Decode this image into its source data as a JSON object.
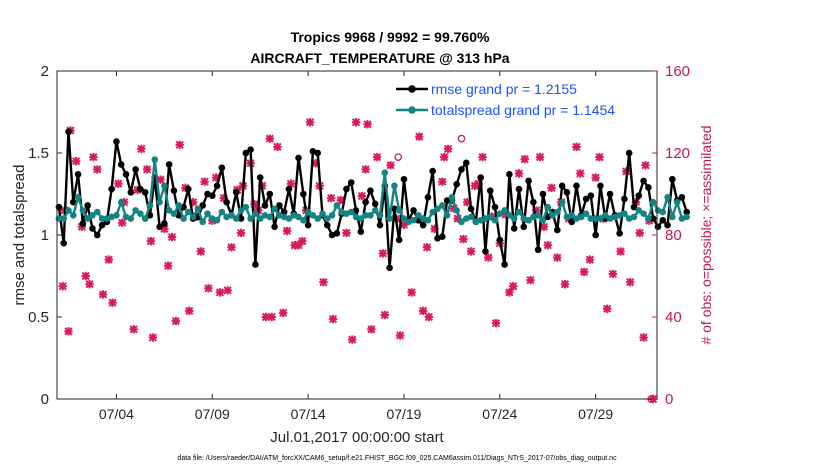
{
  "chart_data": {
    "type": "line",
    "title": "Tropics 9968 / 9992 = 99.760%",
    "subtitle": "AIRCRAFT_TEMPERATURE @ 313 hPa",
    "xlabel": "Jul.01,2017 00:00:00 start",
    "ylabel": "rmse and totalspread",
    "y2label": "# of obs: o=possible; ×=assimilated",
    "footnote": "data file: /Users/raeder/DAI/ATM_forcXX/CAM6_setup/f.e21.FHIST_BGC.f09_025.CAM6assim.011/Diags_NTrS_2017-07/obs_diag_output.nc",
    "xlim": [
      0.9,
      32.2
    ],
    "ylim": [
      0,
      2
    ],
    "y2lim": [
      0,
      160
    ],
    "x_ticks": [
      4,
      9,
      14,
      19,
      24,
      29
    ],
    "x_tick_labels": [
      "07/04",
      "07/09",
      "07/14",
      "07/19",
      "07/24",
      "07/29"
    ],
    "y_ticks": [
      0,
      0.5,
      1,
      1.5,
      2
    ],
    "y_tick_labels": [
      "0",
      "0.5",
      "1",
      "1.5",
      "2"
    ],
    "y2_ticks": [
      0,
      40,
      80,
      120,
      160
    ],
    "y2_tick_labels": [
      "0",
      "40",
      "80",
      "120",
      "160"
    ],
    "x_start": 1.0,
    "x_step": 0.25,
    "series": [
      {
        "name": "rmse grand pr = 1.2155",
        "color": "#000000",
        "marker": "circle",
        "values": [
          1.17,
          0.95,
          1.63,
          1.2,
          1.37,
          1.07,
          1.18,
          1.04,
          1.0,
          1.06,
          1.08,
          1.28,
          1.57,
          1.43,
          1.37,
          1.26,
          1.4,
          1.28,
          1.26,
          1.12,
          1.35,
          1.05,
          1.07,
          1.43,
          1.27,
          1.12,
          1.17,
          1.28,
          1.1,
          1.11,
          1.18,
          1.25,
          1.24,
          1.3,
          1.41,
          1.2,
          1.12,
          1.26,
          1.1,
          1.5,
          1.52,
          0.82,
          1.35,
          1.18,
          1.25,
          1.05,
          1.18,
          1.14,
          1.28,
          1.13,
          1.47,
          1.25,
          1.06,
          1.51,
          1.5,
          1.12,
          1.06,
          1.0,
          1.01,
          1.13,
          1.28,
          1.32,
          1.15,
          1.02,
          1.2,
          1.27,
          1.19,
          1.06,
          1.3,
          0.8,
          1.16,
          0.97,
          1.34,
          1.09,
          1.15,
          1.09,
          1.06,
          1.23,
          1.39,
          0.98,
          0.99,
          1.21,
          1.21,
          1.31,
          1.4,
          1.44,
          1.16,
          1.08,
          1.35,
          0.9,
          1.27,
          1.17,
          0.97,
          0.82,
          1.37,
          1.04,
          1.28,
          1.05,
          1.33,
          1.2,
          0.91,
          1.25,
          1.11,
          1.14,
          1.03,
          1.3,
          1.26,
          1.08,
          1.3,
          1.12,
          1.22,
          1.24,
          1.0,
          1.3,
          1.1,
          1.25,
          1.12,
          1.01,
          1.22,
          1.5,
          1.17,
          1.24,
          1.33,
          1.29,
          1.1,
          1.05,
          1.09,
          1.06,
          1.34,
          1.21,
          1.23,
          1.14
        ]
      },
      {
        "name": "totalspread grand pr = 1.1454",
        "color": "#138484",
        "marker": "circle",
        "values": [
          1.1,
          1.1,
          1.15,
          1.12,
          1.23,
          1.15,
          1.1,
          1.12,
          1.14,
          1.1,
          1.1,
          1.11,
          1.12,
          1.2,
          1.11,
          1.1,
          1.15,
          1.13,
          1.1,
          1.18,
          1.46,
          1.2,
          1.3,
          1.15,
          1.13,
          1.18,
          1.1,
          1.14,
          1.11,
          1.16,
          1.08,
          1.13,
          1.1,
          1.09,
          1.14,
          1.11,
          1.12,
          1.1,
          1.15,
          1.17,
          1.1,
          1.13,
          1.1,
          1.12,
          1.11,
          1.16,
          1.12,
          1.11,
          1.1,
          1.12,
          1.11,
          1.09,
          1.14,
          1.12,
          1.1,
          1.13,
          1.1,
          1.12,
          1.18,
          1.14,
          1.13,
          1.14,
          1.11,
          1.1,
          1.12,
          1.12,
          1.15,
          1.12,
          1.38,
          1.1,
          1.3,
          1.15,
          1.1,
          1.08,
          1.09,
          1.12,
          1.1,
          1.09,
          1.14,
          1.16,
          1.18,
          1.12,
          1.23,
          1.15,
          1.08,
          1.1,
          1.11,
          1.08,
          1.09,
          1.1,
          1.11,
          1.09,
          1.13,
          1.15,
          1.12,
          1.1,
          1.14,
          1.1,
          1.09,
          1.11,
          1.12,
          1.09,
          1.17,
          1.12,
          1.14,
          1.2,
          1.11,
          1.12,
          1.1,
          1.11,
          1.13,
          1.1,
          1.1,
          1.1,
          1.12,
          1.1,
          1.11,
          1.12,
          1.13,
          1.1,
          1.11,
          1.15,
          1.13,
          1.1,
          1.2,
          1.15,
          1.14,
          1.23,
          1.11,
          1.2,
          1.1,
          1.11
        ]
      }
    ],
    "obs_assimilated": [
      {
        "x": 1.2,
        "y": 55
      },
      {
        "x": 1.3,
        "y": 92
      },
      {
        "x": 1.5,
        "y": 33
      },
      {
        "x": 1.6,
        "y": 131
      },
      {
        "x": 1.9,
        "y": 116
      },
      {
        "x": 2.2,
        "y": 84
      },
      {
        "x": 2.4,
        "y": 60
      },
      {
        "x": 2.6,
        "y": 56
      },
      {
        "x": 2.8,
        "y": 118
      },
      {
        "x": 3.0,
        "y": 112
      },
      {
        "x": 3.3,
        "y": 51
      },
      {
        "x": 3.6,
        "y": 68
      },
      {
        "x": 3.8,
        "y": 47
      },
      {
        "x": 4.1,
        "y": 105
      },
      {
        "x": 4.3,
        "y": 86
      },
      {
        "x": 4.4,
        "y": 96
      },
      {
        "x": 4.9,
        "y": 34
      },
      {
        "x": 5.1,
        "y": 102
      },
      {
        "x": 5.3,
        "y": 122
      },
      {
        "x": 5.6,
        "y": 112
      },
      {
        "x": 5.8,
        "y": 77
      },
      {
        "x": 5.9,
        "y": 30
      },
      {
        "x": 6.3,
        "y": 107
      },
      {
        "x": 6.5,
        "y": 83
      },
      {
        "x": 6.7,
        "y": 65
      },
      {
        "x": 6.9,
        "y": 79
      },
      {
        "x": 7.1,
        "y": 38
      },
      {
        "x": 7.3,
        "y": 124
      },
      {
        "x": 7.6,
        "y": 103
      },
      {
        "x": 7.8,
        "y": 43
      },
      {
        "x": 8.0,
        "y": 96
      },
      {
        "x": 8.2,
        "y": 89
      },
      {
        "x": 8.4,
        "y": 72
      },
      {
        "x": 8.6,
        "y": 106
      },
      {
        "x": 8.8,
        "y": 54
      },
      {
        "x": 9.0,
        "y": 87
      },
      {
        "x": 9.2,
        "y": 108
      },
      {
        "x": 9.4,
        "y": 52
      },
      {
        "x": 9.6,
        "y": 98
      },
      {
        "x": 9.8,
        "y": 53
      },
      {
        "x": 10.0,
        "y": 74
      },
      {
        "x": 10.3,
        "y": 102
      },
      {
        "x": 10.5,
        "y": 81
      },
      {
        "x": 10.6,
        "y": 104
      },
      {
        "x": 11.0,
        "y": 115
      },
      {
        "x": 11.2,
        "y": 95
      },
      {
        "x": 11.4,
        "y": 92
      },
      {
        "x": 11.6,
        "y": 104
      },
      {
        "x": 11.8,
        "y": 40
      },
      {
        "x": 12.0,
        "y": 127
      },
      {
        "x": 12.1,
        "y": 40
      },
      {
        "x": 12.4,
        "y": 123
      },
      {
        "x": 12.7,
        "y": 42
      },
      {
        "x": 12.9,
        "y": 82
      },
      {
        "x": 13.1,
        "y": 105
      },
      {
        "x": 13.3,
        "y": 75
      },
      {
        "x": 13.5,
        "y": 75
      },
      {
        "x": 13.7,
        "y": 77
      },
      {
        "x": 13.9,
        "y": 92
      },
      {
        "x": 14.1,
        "y": 135
      },
      {
        "x": 14.4,
        "y": 115
      },
      {
        "x": 14.6,
        "y": 104
      },
      {
        "x": 14.8,
        "y": 57
      },
      {
        "x": 15.2,
        "y": 98
      },
      {
        "x": 15.3,
        "y": 39
      },
      {
        "x": 15.7,
        "y": 97
      },
      {
        "x": 16.0,
        "y": 81
      },
      {
        "x": 16.3,
        "y": 29
      },
      {
        "x": 16.5,
        "y": 135
      },
      {
        "x": 16.8,
        "y": 99
      },
      {
        "x": 17.0,
        "y": 112
      },
      {
        "x": 17.1,
        "y": 134
      },
      {
        "x": 17.3,
        "y": 34
      },
      {
        "x": 17.6,
        "y": 118
      },
      {
        "x": 17.9,
        "y": 71
      },
      {
        "x": 18.0,
        "y": 41
      },
      {
        "x": 18.3,
        "y": 114
      },
      {
        "x": 18.6,
        "y": 88
      },
      {
        "x": 18.8,
        "y": 31
      },
      {
        "x": 19.0,
        "y": 85
      },
      {
        "x": 19.4,
        "y": 52
      },
      {
        "x": 19.8,
        "y": 128
      },
      {
        "x": 20.0,
        "y": 43
      },
      {
        "x": 20.2,
        "y": 74
      },
      {
        "x": 20.3,
        "y": 40
      },
      {
        "x": 20.6,
        "y": 83
      },
      {
        "x": 21.0,
        "y": 106
      },
      {
        "x": 21.1,
        "y": 118
      },
      {
        "x": 21.3,
        "y": 122
      },
      {
        "x": 21.6,
        "y": 93
      },
      {
        "x": 21.8,
        "y": 88
      },
      {
        "x": 22.1,
        "y": 78
      },
      {
        "x": 22.3,
        "y": 96
      },
      {
        "x": 22.5,
        "y": 72
      },
      {
        "x": 22.7,
        "y": 104
      },
      {
        "x": 22.9,
        "y": 105
      },
      {
        "x": 23.1,
        "y": 118
      },
      {
        "x": 23.4,
        "y": 69
      },
      {
        "x": 23.6,
        "y": 89
      },
      {
        "x": 23.8,
        "y": 37
      },
      {
        "x": 24.0,
        "y": 76
      },
      {
        "x": 24.3,
        "y": 90
      },
      {
        "x": 24.5,
        "y": 52
      },
      {
        "x": 24.7,
        "y": 55
      },
      {
        "x": 25.0,
        "y": 110
      },
      {
        "x": 25.3,
        "y": 117
      },
      {
        "x": 25.6,
        "y": 58
      },
      {
        "x": 25.9,
        "y": 92
      },
      {
        "x": 26.1,
        "y": 118
      },
      {
        "x": 26.3,
        "y": 84
      },
      {
        "x": 26.5,
        "y": 75
      },
      {
        "x": 26.7,
        "y": 103
      },
      {
        "x": 27.0,
        "y": 69
      },
      {
        "x": 27.2,
        "y": 96
      },
      {
        "x": 27.4,
        "y": 56
      },
      {
        "x": 27.6,
        "y": 88
      },
      {
        "x": 28.0,
        "y": 123
      },
      {
        "x": 28.2,
        "y": 110
      },
      {
        "x": 28.4,
        "y": 62
      },
      {
        "x": 28.7,
        "y": 68
      },
      {
        "x": 29.0,
        "y": 108
      },
      {
        "x": 29.2,
        "y": 118
      },
      {
        "x": 29.4,
        "y": 88
      },
      {
        "x": 29.6,
        "y": 44
      },
      {
        "x": 29.9,
        "y": 61
      },
      {
        "x": 30.3,
        "y": 72
      },
      {
        "x": 30.6,
        "y": 111
      },
      {
        "x": 30.8,
        "y": 57
      },
      {
        "x": 31.1,
        "y": 96
      },
      {
        "x": 31.3,
        "y": 81
      },
      {
        "x": 31.5,
        "y": 30
      },
      {
        "x": 31.6,
        "y": 114
      },
      {
        "x": 31.8,
        "y": 87
      },
      {
        "x": 32.0,
        "y": 0
      }
    ],
    "obs_possible": [
      {
        "x": 18.7,
        "y": 118
      },
      {
        "x": 22.0,
        "y": 127
      },
      {
        "x": 31.9,
        "y": 0
      }
    ]
  }
}
